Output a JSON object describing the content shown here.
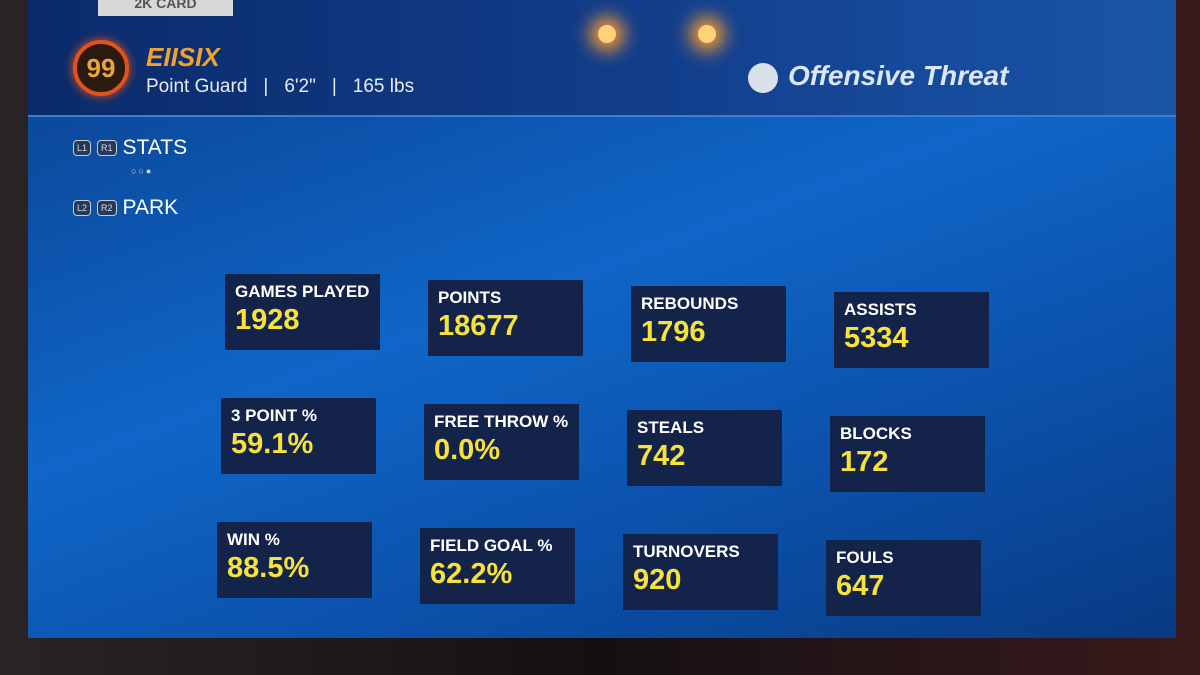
{
  "tab": "2K CARD",
  "player": {
    "rating": "99",
    "name": "EIISIX",
    "position": "Point Guard",
    "height": "6'2\"",
    "weight": "165 lbs"
  },
  "badge": "Offensive Threat",
  "nav": [
    {
      "buttons": [
        "L1",
        "R1"
      ],
      "label": "STATS"
    },
    {
      "buttons": [
        "L2",
        "R2"
      ],
      "label": "PARK"
    }
  ],
  "stats": [
    {
      "label": "GAMES PLAYED",
      "value": "1928"
    },
    {
      "label": "POINTS",
      "value": "18677"
    },
    {
      "label": "REBOUNDS",
      "value": "1796"
    },
    {
      "label": "ASSISTS",
      "value": "5334"
    },
    {
      "label": "3 POINT %",
      "value": "59.1%"
    },
    {
      "label": "FREE THROW %",
      "value": "0.0%"
    },
    {
      "label": "STEALS",
      "value": "742"
    },
    {
      "label": "BLOCKS",
      "value": "172"
    },
    {
      "label": "WIN %",
      "value": "88.5%"
    },
    {
      "label": "FIELD GOAL %",
      "value": "62.2%"
    },
    {
      "label": "TURNOVERS",
      "value": "920"
    },
    {
      "label": "FOULS",
      "value": "647"
    }
  ]
}
